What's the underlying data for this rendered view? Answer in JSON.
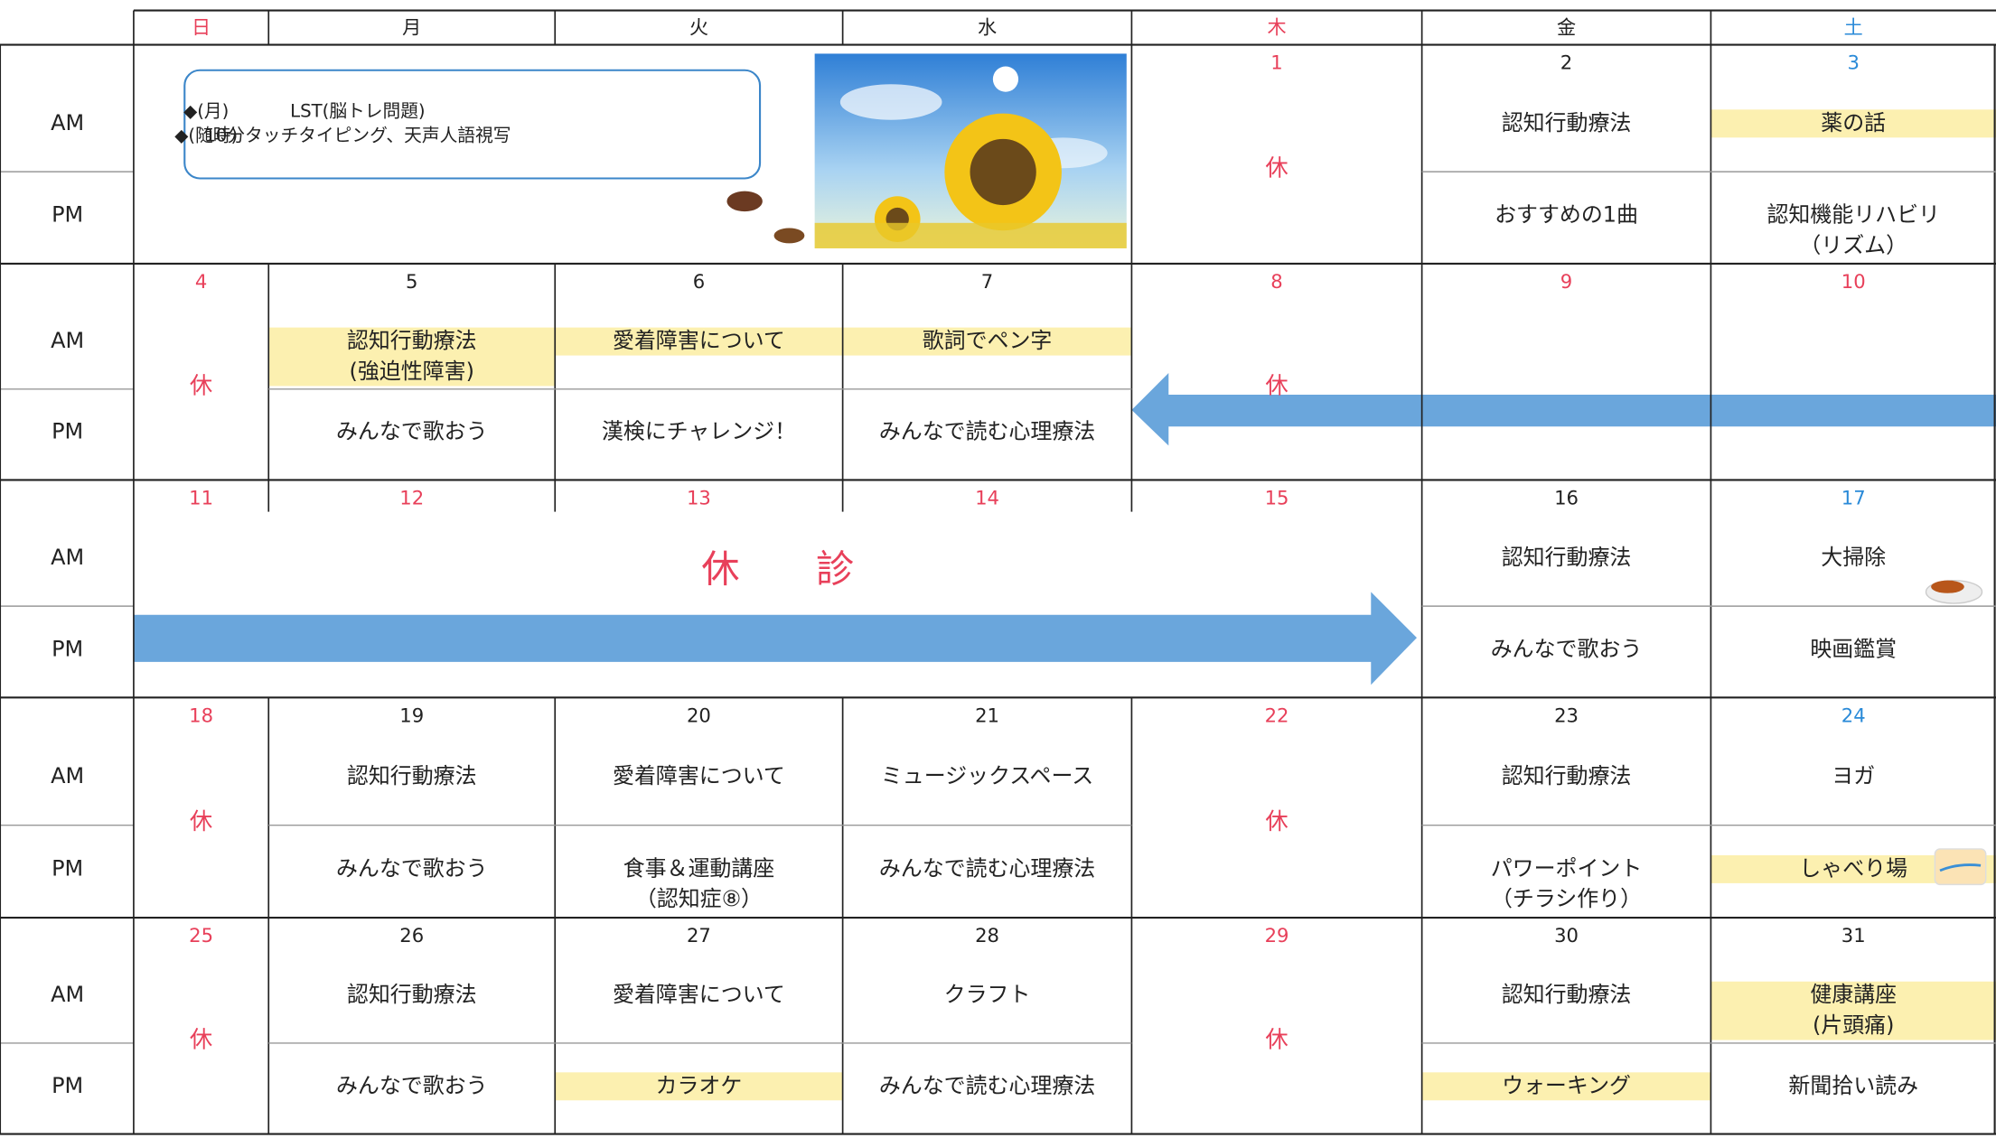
{
  "weekdays": [
    "日",
    "月",
    "火",
    "水",
    "木",
    "金",
    "土"
  ],
  "weekday_colors": [
    "#e8405a",
    "#222222",
    "#222222",
    "#222222",
    "#e8405a",
    "#222222",
    "#2a8ad8"
  ],
  "row_labels": {
    "am": "AM",
    "pm": "PM"
  },
  "highlight_color": "#fcf0b0",
  "notice": [
    {
      "key": "◆(月)",
      "text": "LST(脳トレ問題)"
    },
    {
      "key": "◆(随時)",
      "text": "10分タッチタイピング、天声人語視写"
    }
  ],
  "weeks": [
    {
      "days": [
        null,
        null,
        null,
        null,
        {
          "date": 1,
          "date_color": "#e8405a",
          "closed": "休"
        },
        {
          "date": 2,
          "date_color": "#222222",
          "am": [
            "認知行動療法"
          ],
          "pm": [
            "おすすめの1曲"
          ]
        },
        {
          "date": 3,
          "date_color": "#2a8ad8",
          "am": [
            "薬の話"
          ],
          "am_highlight": true,
          "pm": [
            "認知機能リハビリ",
            "（リズム）"
          ]
        }
      ]
    },
    {
      "days": [
        {
          "date": 4,
          "date_color": "#e8405a",
          "closed": "休"
        },
        {
          "date": 5,
          "date_color": "#222222",
          "am": [
            "認知行動療法",
            "(強迫性障害)"
          ],
          "am_highlight": true,
          "pm": [
            "みんなで歌おう"
          ]
        },
        {
          "date": 6,
          "date_color": "#222222",
          "am": [
            "愛着障害について"
          ],
          "am_highlight": true,
          "pm": [
            "漢検にチャレンジ！"
          ]
        },
        {
          "date": 7,
          "date_color": "#222222",
          "am": [
            "歌詞でペン字"
          ],
          "am_highlight": true,
          "pm": [
            "みんなで読む心理療法"
          ]
        },
        {
          "date": 8,
          "date_color": "#e8405a",
          "closed": "休"
        },
        {
          "date": 9,
          "date_color": "#e8405a"
        },
        {
          "date": 10,
          "date_color": "#e8405a"
        }
      ]
    },
    {
      "banner": "休　　診",
      "days": [
        {
          "date": 11,
          "date_color": "#e8405a"
        },
        {
          "date": 12,
          "date_color": "#e8405a"
        },
        {
          "date": 13,
          "date_color": "#e8405a"
        },
        {
          "date": 14,
          "date_color": "#e8405a"
        },
        {
          "date": 15,
          "date_color": "#e8405a"
        },
        {
          "date": 16,
          "date_color": "#222222",
          "am": [
            "認知行動療法"
          ],
          "pm": [
            "みんなで歌おう"
          ]
        },
        {
          "date": 17,
          "date_color": "#2a8ad8",
          "am": [
            "大掃除"
          ],
          "pm": [
            "映画鑑賞"
          ]
        }
      ]
    },
    {
      "days": [
        {
          "date": 18,
          "date_color": "#e8405a",
          "closed": "休"
        },
        {
          "date": 19,
          "date_color": "#222222",
          "am": [
            "認知行動療法"
          ],
          "pm": [
            "みんなで歌おう"
          ]
        },
        {
          "date": 20,
          "date_color": "#222222",
          "am": [
            "愛着障害について"
          ],
          "pm": [
            "食事＆運動講座",
            "（認知症⑧）"
          ]
        },
        {
          "date": 21,
          "date_color": "#222222",
          "am": [
            "ミュージックスペース"
          ],
          "pm": [
            "みんなで読む心理療法"
          ]
        },
        {
          "date": 22,
          "date_color": "#e8405a",
          "closed": "休"
        },
        {
          "date": 23,
          "date_color": "#222222",
          "am": [
            "認知行動療法"
          ],
          "pm": [
            "パワーポイント",
            "（チラシ作り）"
          ]
        },
        {
          "date": 24,
          "date_color": "#2a8ad8",
          "am": [
            "ヨガ"
          ],
          "pm": [
            "しゃべり場"
          ],
          "pm_highlight": true
        }
      ]
    },
    {
      "days": [
        {
          "date": 25,
          "date_color": "#e8405a",
          "closed": "休"
        },
        {
          "date": 26,
          "date_color": "#222222",
          "am": [
            "認知行動療法"
          ],
          "pm": [
            "みんなで歌おう"
          ]
        },
        {
          "date": 27,
          "date_color": "#222222",
          "am": [
            "愛着障害について"
          ],
          "pm": [
            "カラオケ"
          ],
          "pm_highlight": true
        },
        {
          "date": 28,
          "date_color": "#222222",
          "am": [
            "クラフト"
          ],
          "pm": [
            "みんなで読む心理療法"
          ]
        },
        {
          "date": 29,
          "date_color": "#e8405a",
          "closed": "休"
        },
        {
          "date": 30,
          "date_color": "#222222",
          "am": [
            "認知行動療法"
          ],
          "pm": [
            "ウォーキング"
          ],
          "pm_highlight": true
        },
        {
          "date": 31,
          "date_color": "#222222",
          "am": [
            "健康講座",
            "(片頭痛)"
          ],
          "am_highlight": true,
          "pm": [
            "新聞拾い読み"
          ]
        }
      ]
    }
  ]
}
